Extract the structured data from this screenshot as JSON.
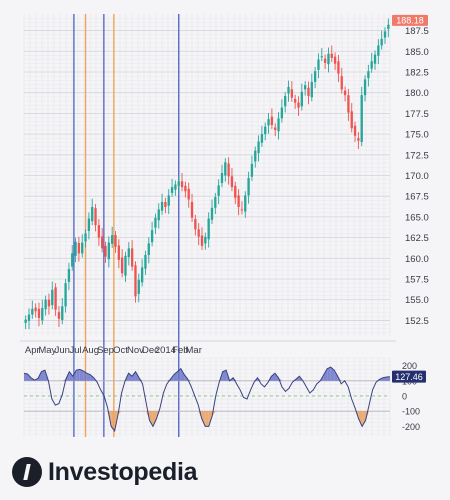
{
  "brand": {
    "name": "Investopedia",
    "mark_icon": "investopedia-logo-icon"
  },
  "colors": {
    "up": "#26a69a",
    "down": "#ef5350",
    "blue_line": "#5b6bc7",
    "orange_line": "#f2a35a",
    "cci_line": "#3a4280",
    "cci_fill_pos": "#6a74c9",
    "cci_fill_neg": "#e9a060",
    "last_price_bg": "#f07a6a",
    "cci_label_bg": "#253070"
  },
  "chart_data": [
    {
      "type": "candlestick",
      "title": "",
      "x_tick_labels": [
        "Apr",
        "May",
        "Jun",
        "Jul",
        "Aug",
        "Sep",
        "Oct",
        "Nov",
        "Dec",
        "2014",
        "Feb",
        "Mar"
      ],
      "x_tick_positions": [
        2.5,
        7,
        11.5,
        15.5,
        20,
        24.5,
        29,
        33.5,
        38,
        42.5,
        47,
        51
      ],
      "y_ticks": [
        "152.5",
        "155.0",
        "157.5",
        "160.0",
        "162.5",
        "165.0",
        "167.5",
        "170.0",
        "172.5",
        "175.0",
        "177.5",
        "180.0",
        "182.5",
        "185.0",
        "187.5"
      ],
      "ylim": [
        150.5,
        189.5
      ],
      "last_price": "188.18",
      "grid": true,
      "closes": [
        152.6,
        153.2,
        153.9,
        153.6,
        152.8,
        154.0,
        155.0,
        154.2,
        156.2,
        153.8,
        152.7,
        154.2,
        157.0,
        158.7,
        160.6,
        162.0,
        160.6,
        161.9,
        163.0,
        164.8,
        166.2,
        164.0,
        162.5,
        161.2,
        160.2,
        161.9,
        162.8,
        161.4,
        159.8,
        158.2,
        160.3,
        161.2,
        159.0,
        155.4,
        157.4,
        158.9,
        160.4,
        161.8,
        163.4,
        164.9,
        165.9,
        166.8,
        166.2,
        167.6,
        168.6,
        168.9,
        169.3,
        168.6,
        168.1,
        167.1,
        164.9,
        163.5,
        162.6,
        161.5,
        162.6,
        164.8,
        166.1,
        167.4,
        168.8,
        170.3,
        171.6,
        169.9,
        168.6,
        167.3,
        166.2,
        165.8,
        167.6,
        169.7,
        171.4,
        173.0,
        174.1,
        175.0,
        175.9,
        176.8,
        176.1,
        175.5,
        176.9,
        178.2,
        179.6,
        180.7,
        179.4,
        178.8,
        178.2,
        180.1,
        180.9,
        179.6,
        181.3,
        182.6,
        184.0,
        184.4,
        183.6,
        184.7,
        184.2,
        183.5,
        182.3,
        180.4,
        179.7,
        177.6,
        175.7,
        174.8,
        174.2,
        179.7,
        181.6,
        182.6,
        183.8,
        184.6,
        185.7,
        186.5,
        187.4,
        188.2
      ],
      "vertical_lines": [
        {
          "color": "blue",
          "x": 15
        },
        {
          "color": "orange",
          "x": 18.5
        },
        {
          "color": "blue",
          "x": 24
        },
        {
          "color": "orange",
          "x": 27
        },
        {
          "color": "blue",
          "x": 46.5
        }
      ]
    },
    {
      "type": "area",
      "title": "",
      "indicator_value": "127.46",
      "y_ticks": [
        "200",
        "100",
        "0",
        "-100",
        "-200"
      ],
      "ylim": [
        -270,
        250
      ],
      "reference_levels": [
        100,
        0,
        -100
      ],
      "values": [
        150,
        145,
        120,
        105,
        115,
        160,
        170,
        100,
        -20,
        -60,
        -50,
        10,
        110,
        160,
        130,
        170,
        175,
        165,
        150,
        140,
        120,
        90,
        40,
        0,
        -80,
        -200,
        -230,
        -120,
        20,
        100,
        150,
        130,
        160,
        120,
        80,
        -40,
        -160,
        -200,
        -150,
        -80,
        20,
        80,
        110,
        140,
        160,
        180,
        140,
        110,
        60,
        0,
        -60,
        -150,
        -200,
        -200,
        -130,
        0,
        90,
        160,
        170,
        100,
        120,
        80,
        40,
        -10,
        -20,
        40,
        90,
        120,
        80,
        60,
        90,
        130,
        150,
        120,
        60,
        30,
        50,
        90,
        110,
        130,
        100,
        60,
        20,
        40,
        80,
        100,
        140,
        180,
        190,
        170,
        130,
        80,
        100,
        60,
        -20,
        -80,
        -150,
        -200,
        -160,
        -60,
        40,
        90,
        110,
        120,
        125,
        127
      ]
    }
  ]
}
